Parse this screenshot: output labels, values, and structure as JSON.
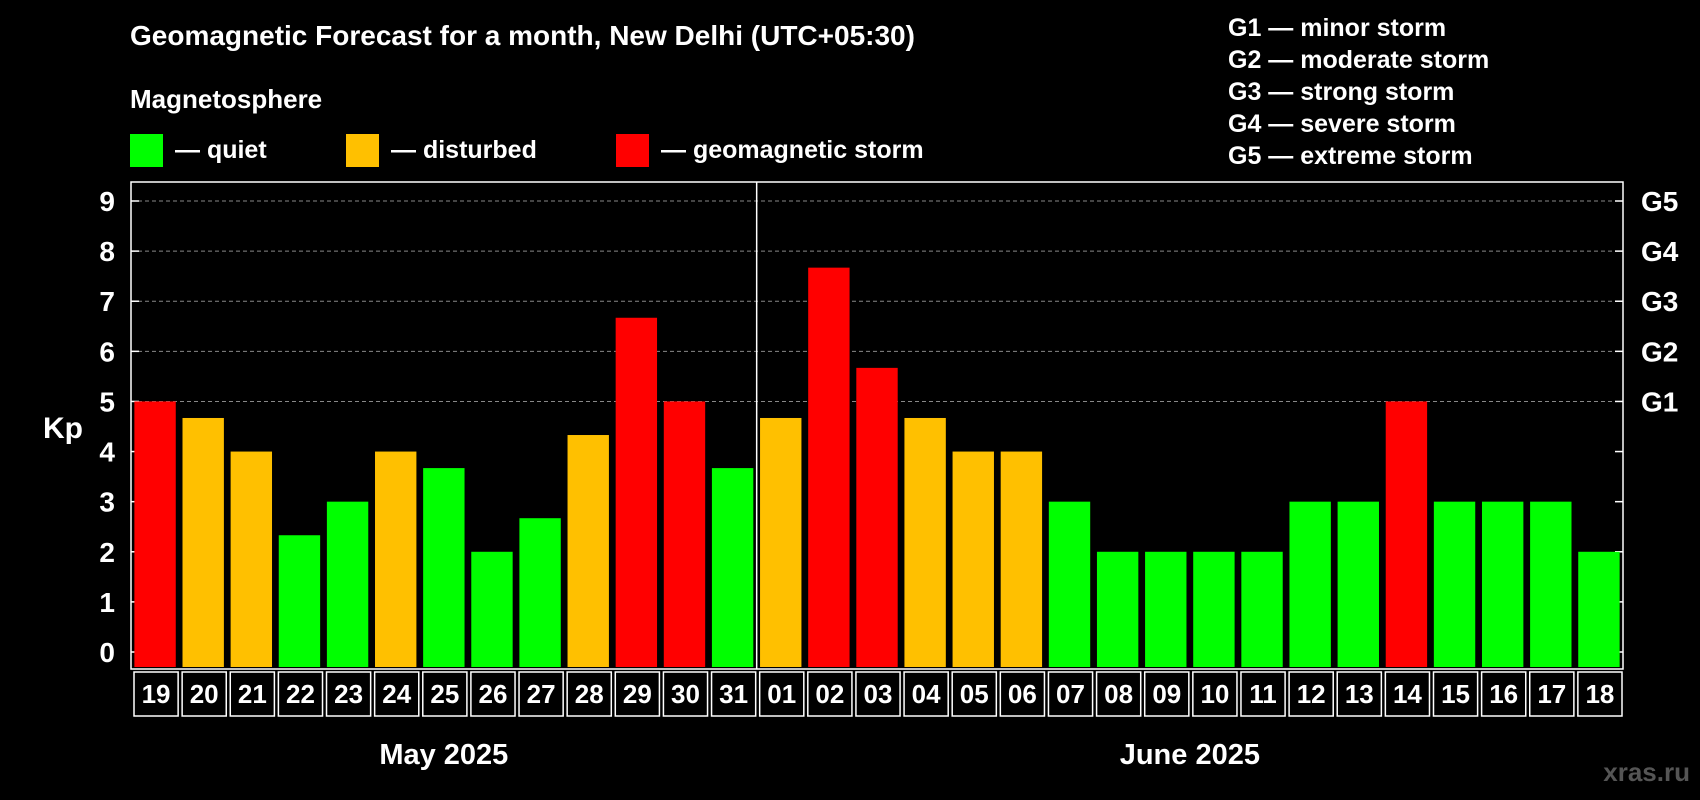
{
  "header": {
    "title": "Geomagnetic Forecast for a month, New Delhi (UTC+05:30)",
    "magnetosphere_label": "Magnetosphere"
  },
  "legend": {
    "items": [
      {
        "label": "— quiet",
        "color": "#00ff00"
      },
      {
        "label": "— disturbed",
        "color": "#ffc000"
      },
      {
        "label": "— geomagnetic storm",
        "color": "#ff0000"
      }
    ]
  },
  "g_scale": [
    "G1 — minor storm",
    "G2 — moderate storm",
    "G3 — strong storm",
    "G4 — severe storm",
    "G5 — extreme storm"
  ],
  "watermark": "xras.ru",
  "colors": {
    "quiet": "#00ff00",
    "disturbed": "#ffc000",
    "storm": "#ff0000",
    "background": "#000000",
    "grid": "#888888"
  },
  "chart_data": {
    "type": "bar",
    "ylabel": "Kp",
    "ylim": [
      0,
      9
    ],
    "yticks": [
      0,
      1,
      2,
      3,
      4,
      5,
      6,
      7,
      8,
      9
    ],
    "right_axis_labels": [
      {
        "kp": 5,
        "label": "G1"
      },
      {
        "kp": 6,
        "label": "G2"
      },
      {
        "kp": 7,
        "label": "G3"
      },
      {
        "kp": 8,
        "label": "G4"
      },
      {
        "kp": 9,
        "label": "G5"
      }
    ],
    "grid": true,
    "categories": [
      "19",
      "20",
      "21",
      "22",
      "23",
      "24",
      "25",
      "26",
      "27",
      "28",
      "29",
      "30",
      "31",
      "01",
      "02",
      "03",
      "04",
      "05",
      "06",
      "07",
      "08",
      "09",
      "10",
      "11",
      "12",
      "13",
      "14",
      "15",
      "16",
      "17",
      "18"
    ],
    "values": [
      5,
      4.67,
      4,
      2.33,
      3,
      4,
      3.67,
      2,
      2.67,
      4.33,
      6.67,
      5,
      3.67,
      4.67,
      7.67,
      5.67,
      4.67,
      4,
      4,
      3,
      2,
      2,
      2,
      2,
      3,
      3,
      5,
      3,
      3,
      3,
      2
    ],
    "levels": [
      "storm",
      "disturbed",
      "disturbed",
      "quiet",
      "quiet",
      "disturbed",
      "quiet",
      "quiet",
      "quiet",
      "disturbed",
      "storm",
      "storm",
      "quiet",
      "disturbed",
      "storm",
      "storm",
      "disturbed",
      "disturbed",
      "disturbed",
      "quiet",
      "quiet",
      "quiet",
      "quiet",
      "quiet",
      "quiet",
      "quiet",
      "storm",
      "quiet",
      "quiet",
      "quiet",
      "quiet"
    ],
    "months": [
      {
        "label": "May 2025",
        "count": 13
      },
      {
        "label": "June 2025",
        "count": 18
      }
    ]
  }
}
